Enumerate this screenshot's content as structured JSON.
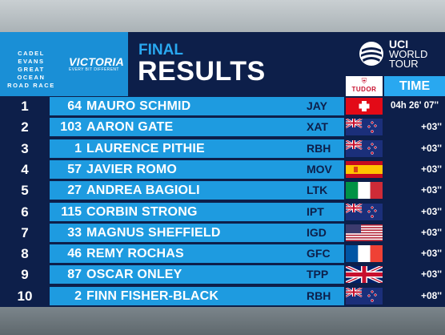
{
  "header": {
    "race_logo_lines": [
      "CADEL EVANS",
      "GREAT OCEAN",
      "ROAD RACE"
    ],
    "sponsor_main": "VICTORIA",
    "sponsor_tagline": "EVERY BIT DIFFERENT",
    "title_small": "FINAL",
    "title_big": "RESULTS",
    "uci_line1": "UCI",
    "uci_line2": "WORLD",
    "uci_line3": "TOUR",
    "tudor": "TUDOR",
    "time_label": "TIME"
  },
  "colors": {
    "navy": "#0d1f4a",
    "accent": "#1e9be0",
    "light_accent": "#29a8f0"
  },
  "rows": [
    {
      "pos": "1",
      "bib": "64",
      "name": "MAURO SCHMID",
      "team": "JAY",
      "flag": "switzerland",
      "time": "04h 26' 07''"
    },
    {
      "pos": "2",
      "bib": "103",
      "name": "AARON GATE",
      "team": "XAT",
      "flag": "new-zealand",
      "time": "+03''"
    },
    {
      "pos": "3",
      "bib": "1",
      "name": "LAURENCE PITHIE",
      "team": "RBH",
      "flag": "new-zealand",
      "time": "+03''"
    },
    {
      "pos": "4",
      "bib": "57",
      "name": "JAVIER ROMO",
      "team": "MOV",
      "flag": "spain",
      "time": "+03''"
    },
    {
      "pos": "5",
      "bib": "27",
      "name": "ANDREA BAGIOLI",
      "team": "LTK",
      "flag": "italy",
      "time": "+03''"
    },
    {
      "pos": "6",
      "bib": "115",
      "name": "CORBIN STRONG",
      "team": "IPT",
      "flag": "new-zealand",
      "time": "+03''"
    },
    {
      "pos": "7",
      "bib": "33",
      "name": "MAGNUS SHEFFIELD",
      "team": "IGD",
      "flag": "usa",
      "time": "+03''"
    },
    {
      "pos": "8",
      "bib": "46",
      "name": "REMY ROCHAS",
      "team": "GFC",
      "flag": "france",
      "time": "+03''"
    },
    {
      "pos": "9",
      "bib": "87",
      "name": "OSCAR ONLEY",
      "team": "TPP",
      "flag": "uk",
      "time": "+03''"
    },
    {
      "pos": "10",
      "bib": "2",
      "name": "FINN FISHER-BLACK",
      "team": "RBH",
      "flag": "new-zealand",
      "time": "+08''"
    }
  ]
}
